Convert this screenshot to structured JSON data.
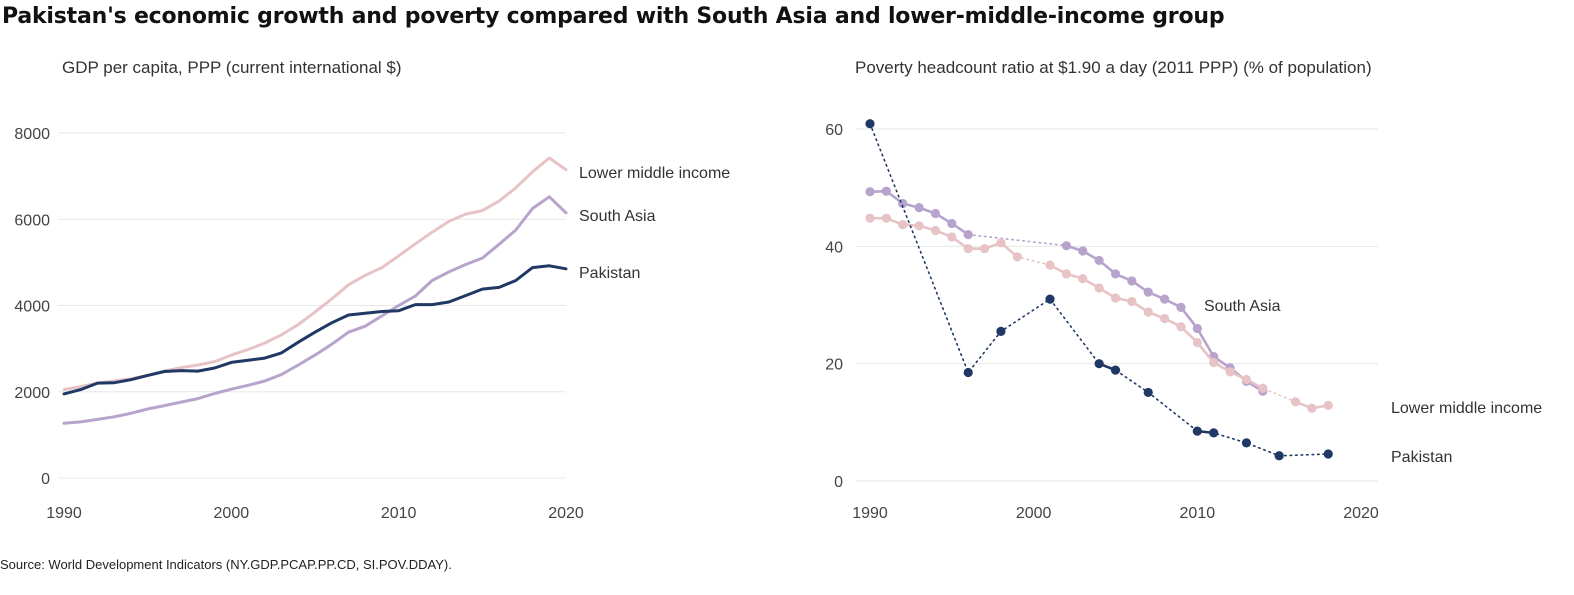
{
  "title": "Pakistan's economic growth and poverty compared with South Asia and lower-middle-income group",
  "source": "Source: World Development Indicators (NY.GDP.PCAP.PP.CD, SI.POV.DDAY).",
  "colors": {
    "pakistan": "#1f3864",
    "south_asia": "#b7a3cc",
    "lower_middle": "#e8c3c5",
    "grid": "#e8e8e8"
  },
  "chart_data": [
    {
      "type": "line",
      "title": "GDP per capita, PPP (current international $)",
      "xlabel": "",
      "ylabel": "",
      "xlim": [
        1990,
        2020
      ],
      "ylim": [
        0,
        8000
      ],
      "xticks": [
        1990,
        2000,
        2010,
        2020
      ],
      "yticks": [
        0,
        2000,
        4000,
        6000,
        8000
      ],
      "grid": true,
      "legend": "inline-right",
      "series": [
        {
          "name": "Lower middle income",
          "key": "lower_middle",
          "x": [
            1990,
            1991,
            1992,
            1993,
            1994,
            1995,
            1996,
            1997,
            1998,
            1999,
            2000,
            2001,
            2002,
            2003,
            2004,
            2005,
            2006,
            2007,
            2008,
            2009,
            2010,
            2011,
            2012,
            2013,
            2014,
            2015,
            2016,
            2017,
            2018,
            2019,
            2020
          ],
          "y": [
            2050,
            2120,
            2200,
            2250,
            2300,
            2380,
            2480,
            2560,
            2620,
            2700,
            2850,
            2980,
            3130,
            3320,
            3560,
            3850,
            4150,
            4480,
            4700,
            4880,
            5150,
            5430,
            5700,
            5950,
            6120,
            6200,
            6420,
            6730,
            7100,
            7420,
            7150
          ]
        },
        {
          "name": "South Asia",
          "key": "south_asia",
          "x": [
            1990,
            1991,
            1992,
            1993,
            1994,
            1995,
            1996,
            1997,
            1998,
            1999,
            2000,
            2001,
            2002,
            2003,
            2004,
            2005,
            2006,
            2007,
            2008,
            2009,
            2010,
            2011,
            2012,
            2013,
            2014,
            2015,
            2016,
            2017,
            2018,
            2019,
            2020
          ],
          "y": [
            1270,
            1300,
            1360,
            1420,
            1500,
            1600,
            1680,
            1760,
            1840,
            1960,
            2060,
            2150,
            2250,
            2400,
            2620,
            2850,
            3100,
            3380,
            3520,
            3760,
            4000,
            4220,
            4580,
            4780,
            4950,
            5100,
            5420,
            5750,
            6250,
            6520,
            6150
          ]
        },
        {
          "name": "Pakistan",
          "key": "pakistan",
          "x": [
            1990,
            1991,
            1992,
            1993,
            1994,
            1995,
            1996,
            1997,
            1998,
            1999,
            2000,
            2001,
            2002,
            2003,
            2004,
            2005,
            2006,
            2007,
            2008,
            2009,
            2010,
            2011,
            2012,
            2013,
            2014,
            2015,
            2016,
            2017,
            2018,
            2019,
            2020
          ],
          "y": [
            1950,
            2050,
            2200,
            2210,
            2280,
            2380,
            2470,
            2490,
            2480,
            2550,
            2680,
            2730,
            2780,
            2900,
            3150,
            3380,
            3600,
            3780,
            3820,
            3860,
            3880,
            4020,
            4020,
            4080,
            4230,
            4380,
            4420,
            4580,
            4880,
            4920,
            4850
          ]
        }
      ]
    },
    {
      "type": "line",
      "title": "Poverty headcount ratio at $1.90 a day (2011 PPP) (% of population)",
      "xlabel": "",
      "ylabel": "",
      "xlim": [
        1990,
        2020
      ],
      "ylim": [
        0,
        60
      ],
      "xticks": [
        1990,
        2000,
        2010,
        2020
      ],
      "yticks": [
        0,
        20,
        40,
        60
      ],
      "grid": true,
      "legend": "inline-right",
      "series": [
        {
          "name": "South Asia",
          "key": "south_asia",
          "x": [
            1990,
            1991,
            1992,
            1993,
            1994,
            1995,
            1996,
            2002,
            2003,
            2004,
            2005,
            2006,
            2007,
            2008,
            2009,
            2010,
            2011,
            2012,
            2013,
            2014
          ],
          "y": [
            49.3,
            49.4,
            47.3,
            46.6,
            45.6,
            43.9,
            42.0,
            40.1,
            39.2,
            37.6,
            35.3,
            34.1,
            32.2,
            31.0,
            29.6,
            26.0,
            21.2,
            19.3,
            17.0,
            15.3
          ]
        },
        {
          "name": "Lower middle income",
          "key": "lower_middle",
          "x": [
            1990,
            1991,
            1992,
            1993,
            1994,
            1995,
            1996,
            1997,
            1998,
            1999,
            2001,
            2002,
            2003,
            2004,
            2005,
            2006,
            2007,
            2008,
            2009,
            2010,
            2011,
            2012,
            2013,
            2014,
            2016,
            2017,
            2018
          ],
          "y": [
            44.8,
            44.8,
            43.7,
            43.5,
            42.7,
            41.6,
            39.6,
            39.6,
            40.6,
            38.2,
            36.8,
            35.3,
            34.5,
            32.9,
            31.2,
            30.6,
            28.8,
            27.7,
            26.3,
            23.6,
            20.2,
            18.6,
            17.3,
            15.8,
            13.5,
            12.4,
            12.9
          ]
        },
        {
          "name": "Pakistan",
          "key": "pakistan",
          "x": [
            1990,
            1996,
            1998,
            2001,
            2004,
            2005,
            2007,
            2010,
            2011,
            2013,
            2015,
            2018
          ],
          "y": [
            60.9,
            18.5,
            25.5,
            31.0,
            20.0,
            18.9,
            15.1,
            8.5,
            8.2,
            6.5,
            4.3,
            4.6
          ]
        }
      ]
    }
  ]
}
